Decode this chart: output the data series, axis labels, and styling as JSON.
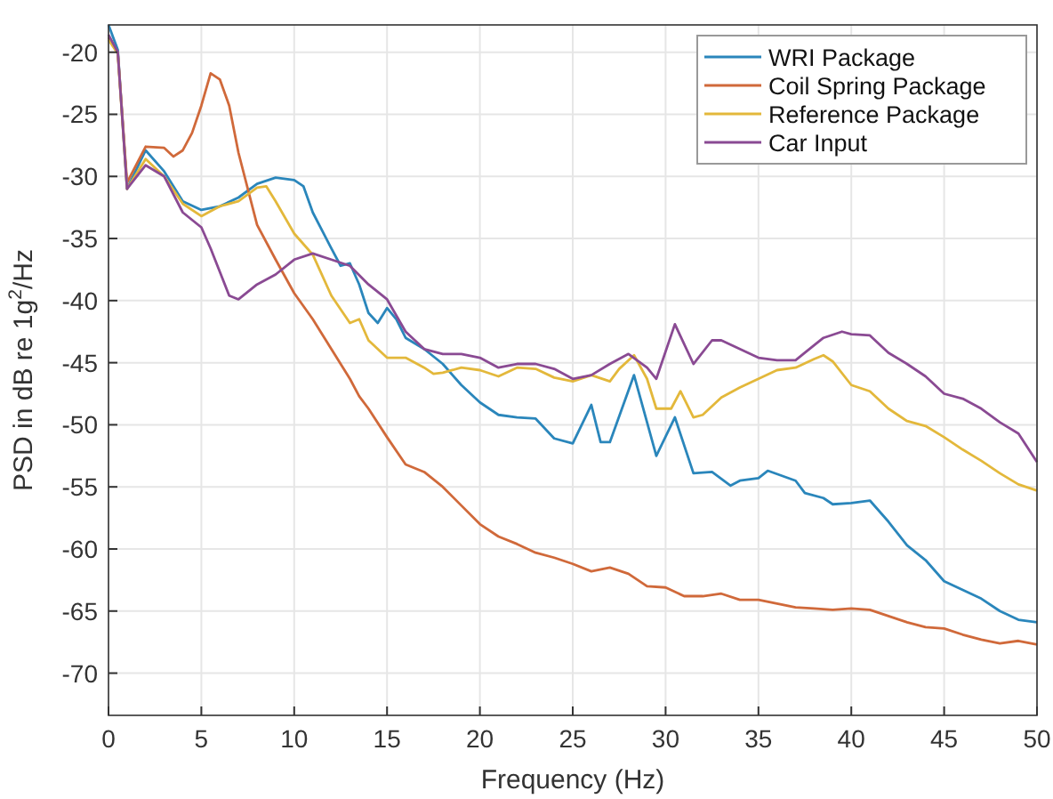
{
  "chart_data": {
    "type": "line",
    "xlabel": "Frequency (Hz)",
    "ylabel": "PSD in dB re 1g$^{2}$/Hz",
    "xlim": [
      0,
      50
    ],
    "ylim": [
      -73.4,
      -17.8
    ],
    "xticks": [
      0,
      5,
      10,
      15,
      20,
      25,
      30,
      35,
      40,
      45,
      50
    ],
    "yticks": [
      -70,
      -65,
      -60,
      -55,
      -50,
      -45,
      -40,
      -35,
      -30,
      -25,
      -20
    ],
    "grid": true,
    "legend": "top right",
    "line_style": "solid",
    "marker": "none",
    "series": [
      {
        "name": "WRI Package",
        "color": "#2a86bb",
        "x": [
          0,
          0.5,
          1,
          2,
          3,
          4,
          5,
          6,
          7,
          8,
          9,
          10,
          10.5,
          11,
          12,
          12.5,
          13,
          13.5,
          14,
          14.5,
          15,
          15.5,
          16,
          17,
          18,
          19,
          20,
          21,
          22,
          23,
          24,
          25,
          26,
          26.5,
          27,
          28.3,
          29.5,
          30.5,
          31.5,
          32.5,
          33.5,
          34,
          35,
          35.5,
          37,
          37.5,
          38.5,
          39,
          40,
          41,
          42,
          43,
          44,
          45,
          46,
          47,
          48,
          49,
          50
        ],
        "values": [
          -17.8,
          -19.8,
          -31,
          -27.9,
          -29.6,
          -32,
          -32.7,
          -32.4,
          -31.7,
          -30.6,
          -30.1,
          -30.3,
          -30.8,
          -32.9,
          -35.8,
          -37.2,
          -37,
          -38.7,
          -41,
          -41.8,
          -40.6,
          -41.5,
          -43,
          -43.9,
          -45.1,
          -46.8,
          -48.2,
          -49.2,
          -49.4,
          -49.5,
          -51.1,
          -51.5,
          -48.4,
          -51.4,
          -51.4,
          -46,
          -52.5,
          -49.4,
          -53.9,
          -53.8,
          -54.9,
          -54.5,
          -54.3,
          -53.7,
          -54.5,
          -55.5,
          -55.9,
          -56.4,
          -56.3,
          -56.1,
          -57.8,
          -59.7,
          -60.9,
          -62.6,
          -63.3,
          -64,
          -65,
          -65.7,
          -65.9
        ]
      },
      {
        "name": "Coil Spring Package",
        "color": "#d0693a",
        "x": [
          0,
          0.5,
          1,
          2,
          3,
          3.5,
          4,
          4.5,
          5,
          5.5,
          6,
          6.5,
          7,
          8,
          9,
          10,
          11,
          12,
          13,
          13.5,
          14,
          15,
          16,
          17,
          18,
          19,
          20,
          21,
          22,
          23,
          24,
          25,
          26,
          27,
          28,
          29,
          30,
          31,
          32,
          33,
          34,
          35,
          36,
          37,
          38,
          39,
          40,
          41,
          42,
          43,
          44,
          45,
          46,
          47,
          48,
          49,
          50
        ],
        "values": [
          -18.8,
          -20,
          -30.5,
          -27.6,
          -27.7,
          -28.4,
          -27.9,
          -26.5,
          -24.3,
          -21.7,
          -22.2,
          -24.3,
          -28.1,
          -33.9,
          -36.7,
          -39.4,
          -41.5,
          -43.9,
          -46.3,
          -47.7,
          -48.7,
          -51,
          -53.2,
          -53.8,
          -55,
          -56.5,
          -58,
          -59,
          -59.6,
          -60.3,
          -60.7,
          -61.2,
          -61.8,
          -61.5,
          -62,
          -63,
          -63.1,
          -63.8,
          -63.8,
          -63.6,
          -64.1,
          -64.1,
          -64.4,
          -64.7,
          -64.8,
          -64.9,
          -64.8,
          -64.9,
          -65.4,
          -65.9,
          -66.3,
          -66.4,
          -66.9,
          -67.3,
          -67.6,
          -67.4,
          -67.7
        ]
      },
      {
        "name": "Reference Package",
        "color": "#e3b83b",
        "x": [
          0,
          0.5,
          1,
          2,
          3,
          4,
          5,
          6,
          7,
          8,
          8.5,
          9,
          10,
          11,
          12,
          13,
          13.5,
          14,
          15,
          16,
          17,
          17.5,
          18,
          19,
          20,
          21,
          22,
          23,
          24,
          25,
          26,
          27,
          27.5,
          28.3,
          29,
          29.5,
          30.3,
          30.8,
          31.5,
          32,
          33,
          34,
          35,
          36,
          37,
          38,
          38.5,
          39,
          40,
          41,
          42,
          43,
          44,
          45,
          46,
          47,
          48,
          49,
          50
        ],
        "values": [
          -19,
          -20.1,
          -31,
          -28.6,
          -30,
          -32.2,
          -33.2,
          -32.4,
          -32,
          -30.9,
          -30.8,
          -32,
          -34.6,
          -36.3,
          -39.6,
          -41.8,
          -41.5,
          -43.2,
          -44.6,
          -44.6,
          -45.4,
          -45.9,
          -45.8,
          -45.4,
          -45.6,
          -46.1,
          -45.4,
          -45.5,
          -46.2,
          -46.5,
          -46,
          -46.5,
          -45.5,
          -44.4,
          -46.3,
          -48.7,
          -48.7,
          -47.3,
          -49.4,
          -49.2,
          -47.8,
          -47,
          -46.3,
          -45.6,
          -45.4,
          -44.7,
          -44.4,
          -44.9,
          -46.8,
          -47.3,
          -48.7,
          -49.7,
          -50.1,
          -51,
          -52,
          -52.9,
          -53.9,
          -54.8,
          -55.3
        ]
      },
      {
        "name": "Car Input",
        "color": "#8a4a93",
        "x": [
          0,
          0.5,
          1,
          2,
          3,
          4,
          5,
          5.5,
          6,
          6.5,
          7,
          8,
          9,
          10,
          11,
          12,
          13,
          14,
          15,
          16,
          17,
          18,
          19,
          20,
          21,
          22,
          23,
          24,
          25,
          26,
          27,
          28,
          29,
          29.5,
          30.5,
          31.5,
          32.5,
          33,
          34,
          35,
          36,
          37,
          37.5,
          38.5,
          39.5,
          40,
          41,
          42,
          43,
          44,
          45,
          46,
          47,
          48,
          49,
          50
        ],
        "values": [
          -18.6,
          -20,
          -31,
          -29.1,
          -30,
          -32.9,
          -34.1,
          -35.8,
          -37.7,
          -39.6,
          -39.9,
          -38.7,
          -37.9,
          -36.7,
          -36.2,
          -36.7,
          -37.2,
          -38.7,
          -39.9,
          -42.5,
          -43.9,
          -44.3,
          -44.3,
          -44.6,
          -45.4,
          -45.1,
          -45.1,
          -45.5,
          -46.3,
          -46,
          -45.1,
          -44.3,
          -45.4,
          -46.3,
          -41.9,
          -45.1,
          -43.2,
          -43.2,
          -43.9,
          -44.6,
          -44.8,
          -44.8,
          -44.2,
          -43,
          -42.5,
          -42.7,
          -42.8,
          -44.2,
          -45.1,
          -46.1,
          -47.5,
          -47.9,
          -48.7,
          -49.8,
          -50.7,
          -53
        ]
      }
    ]
  }
}
